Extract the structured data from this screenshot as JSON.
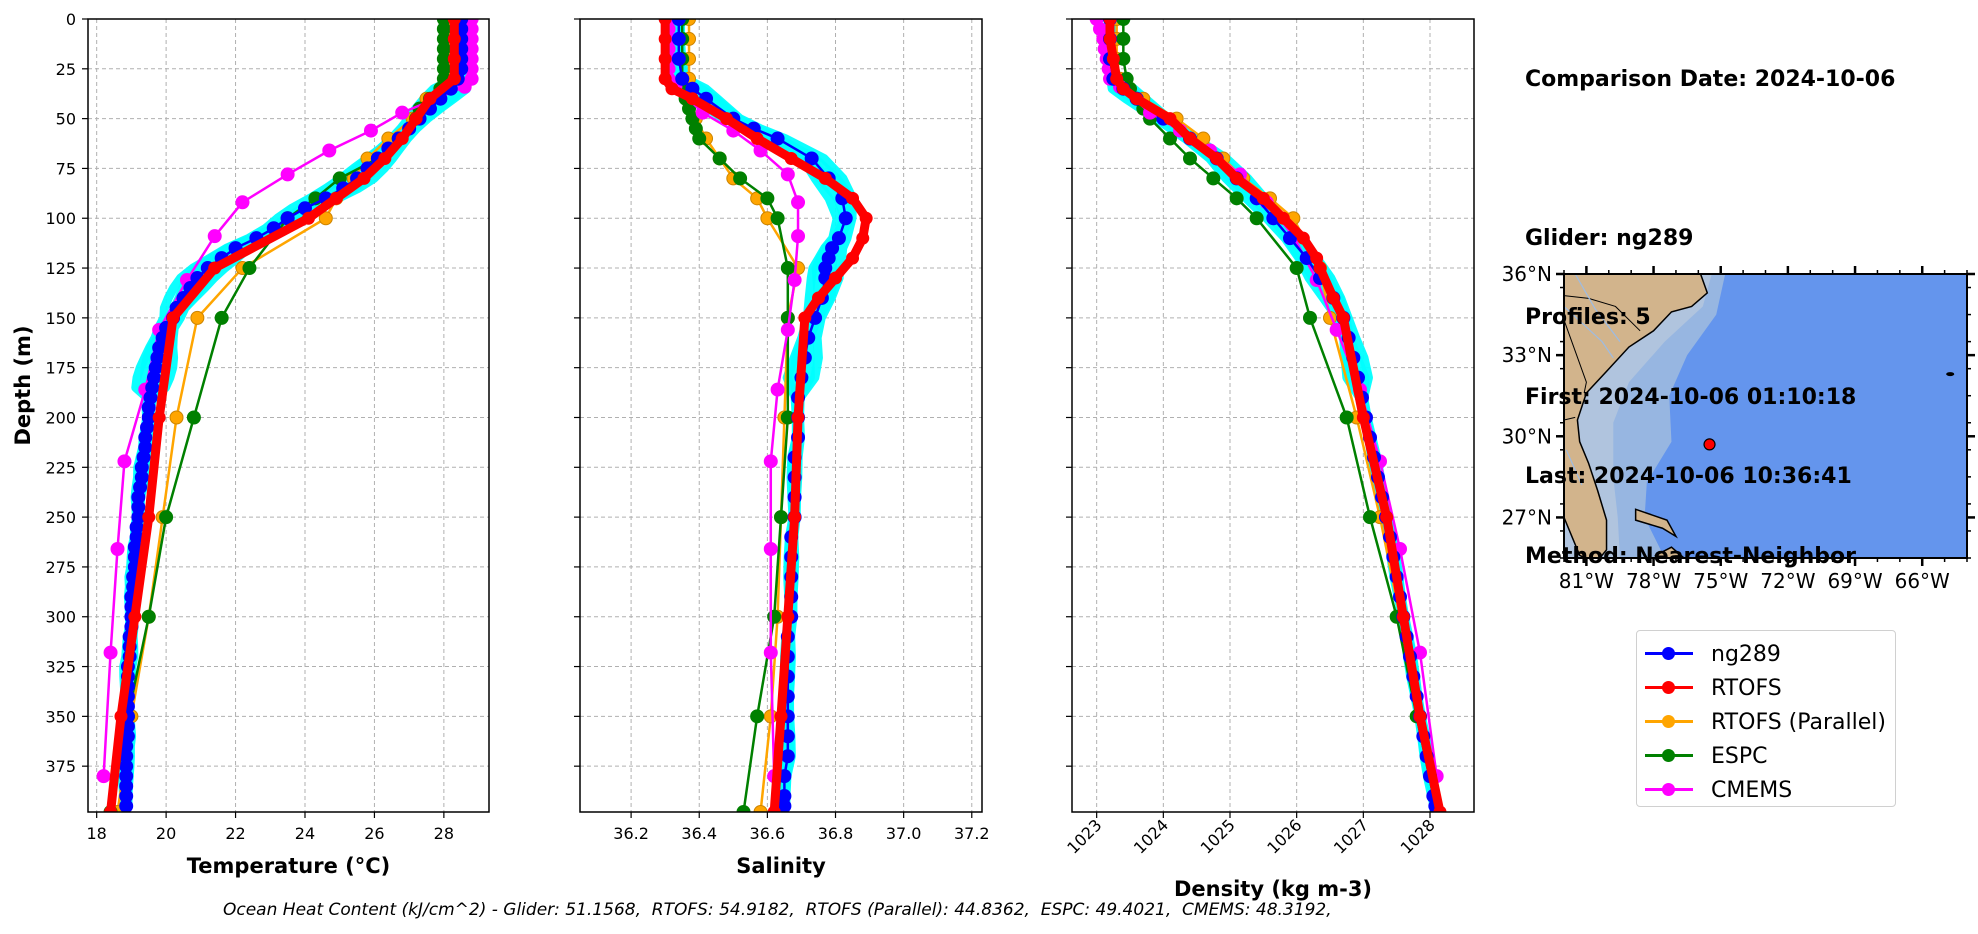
{
  "info": {
    "comparison_date": "Comparison Date: 2024-10-06",
    "glider": "Glider: ng289",
    "profiles": "Profiles: 5",
    "first": "First: 2024-10-06 01:10:18",
    "last": "Last: 2024-10-06 10:36:41",
    "method": "Method: Nearest-Neighbor"
  },
  "footer": "Ocean Heat Content (kJ/cm^2) - Glider: 51.1568,  RTOFS: 54.9182,  RTOFS (Parallel): 44.8362,  ESPC: 49.4021,  CMEMS: 48.3192,",
  "legend": [
    {
      "label": "ng289",
      "color": "#0000ff"
    },
    {
      "label": "RTOFS",
      "color": "#ff0000"
    },
    {
      "label": "RTOFS (Parallel)",
      "color": "#ffa500"
    },
    {
      "label": "ESPC",
      "color": "#008000"
    },
    {
      "label": "CMEMS",
      "color": "#ff00ff"
    }
  ],
  "colors": {
    "glider_raw": "#00ffff",
    "ng289": "#0000ff",
    "RTOFS": "#ff0000",
    "RTOFS (Parallel)": "#ffa500",
    "ESPC": "#008000",
    "CMEMS": "#ff00ff",
    "land": "#d2b48c",
    "shelf": "#b0c4de",
    "slope": "#97b6e1",
    "ocean": "#6495ed",
    "glider_marker": "#ff0000"
  },
  "map": {
    "lat_ticks": [
      "36°N",
      "33°N",
      "30°N",
      "27°N"
    ],
    "lon_ticks": [
      "81°W",
      "78°W",
      "75°W",
      "72°W",
      "69°W",
      "66°W"
    ],
    "extent": {
      "lon": [
        -82,
        -64
      ],
      "lat": [
        25.5,
        36
      ]
    },
    "glider_position": {
      "lon": -75.5,
      "lat": 29.7
    }
  },
  "chart_data": [
    {
      "type": "line",
      "title": "",
      "xlabel": "Temperature (°C)",
      "ylabel": "Depth (m)",
      "xlim": [
        17.75,
        29.3
      ],
      "ylim": [
        398,
        0
      ],
      "xticks": [
        18,
        20,
        22,
        24,
        26,
        28
      ],
      "yticks": [
        0,
        25,
        50,
        75,
        100,
        125,
        150,
        175,
        200,
        225,
        250,
        275,
        300,
        325,
        350,
        375
      ],
      "grid": true,
      "series": [
        {
          "name": "ng289",
          "depth": [
            0,
            5,
            10,
            15,
            20,
            25,
            30,
            35,
            40,
            45,
            50,
            55,
            60,
            65,
            70,
            75,
            80,
            85,
            90,
            95,
            100,
            105,
            110,
            115,
            120,
            125,
            130,
            135,
            140,
            145,
            150,
            155,
            160,
            165,
            170,
            175,
            180,
            185,
            190,
            195,
            200,
            205,
            210,
            215,
            220,
            225,
            230,
            235,
            240,
            245,
            250,
            255,
            260,
            265,
            270,
            275,
            280,
            285,
            290,
            295,
            300,
            305,
            310,
            315,
            320,
            325,
            330,
            335,
            340,
            345,
            350,
            355,
            360,
            365,
            370,
            375,
            380,
            385,
            390,
            395
          ],
          "values": [
            28.5,
            28.5,
            28.5,
            28.5,
            28.5,
            28.5,
            28.4,
            28.2,
            27.9,
            27.6,
            27.3,
            27.0,
            26.7,
            26.4,
            26.1,
            25.8,
            25.5,
            25.1,
            24.6,
            24.0,
            23.5,
            23.1,
            22.6,
            22.0,
            21.6,
            21.2,
            20.9,
            20.7,
            20.5,
            20.3,
            20.2,
            20.0,
            19.9,
            19.8,
            19.75,
            19.7,
            19.65,
            19.6,
            19.55,
            19.5,
            19.5,
            19.45,
            19.4,
            19.4,
            19.35,
            19.3,
            19.3,
            19.25,
            19.2,
            19.2,
            19.2,
            19.15,
            19.15,
            19.1,
            19.1,
            19.1,
            19.05,
            19.05,
            19.0,
            19.0,
            19.0,
            19.0,
            18.95,
            18.95,
            18.95,
            18.9,
            18.9,
            18.9,
            18.9,
            18.9,
            18.9,
            18.9,
            18.9,
            18.85,
            18.85,
            18.85,
            18.85,
            18.85,
            18.85,
            18.85
          ]
        },
        {
          "name": "RTOFS",
          "depth": [
            0,
            10,
            20,
            30,
            40,
            50,
            60,
            70,
            80,
            90,
            100,
            125,
            150,
            200,
            250,
            300,
            350,
            398
          ],
          "values": [
            28.3,
            28.3,
            28.3,
            28.3,
            27.6,
            27.2,
            26.8,
            26.3,
            25.7,
            24.9,
            24.1,
            21.4,
            20.2,
            19.8,
            19.5,
            19.1,
            18.7,
            18.4
          ]
        },
        {
          "name": "RTOFS (Parallel)",
          "depth": [
            0,
            10,
            20,
            30,
            35,
            40,
            45,
            50,
            60,
            70,
            80,
            90,
            100,
            125,
            150,
            200,
            250,
            300,
            350,
            398
          ],
          "values": [
            28.1,
            28.1,
            28.1,
            28.1,
            27.9,
            27.5,
            27.3,
            27.1,
            26.4,
            25.8,
            25.4,
            24.9,
            24.6,
            22.2,
            20.9,
            20.3,
            19.9,
            19.5,
            19.0,
            18.6
          ]
        },
        {
          "name": "ESPC",
          "depth": [
            0,
            5,
            10,
            15,
            20,
            25,
            30,
            35,
            40,
            45,
            50,
            60,
            70,
            80,
            90,
            100,
            125,
            150,
            200,
            250,
            300,
            350,
            398
          ],
          "values": [
            28.0,
            28.0,
            28.0,
            28.0,
            28.0,
            28.0,
            28.0,
            27.9,
            27.6,
            27.3,
            27.2,
            26.7,
            26.1,
            25.0,
            24.3,
            23.5,
            22.4,
            21.6,
            20.8,
            20.0,
            19.5,
            18.9,
            18.4
          ]
        },
        {
          "name": "CMEMS",
          "depth": [
            0,
            5,
            10,
            15,
            20,
            25,
            30,
            34,
            47,
            56,
            66,
            78,
            92,
            109,
            131,
            156,
            186,
            222,
            266,
            318,
            380
          ],
          "values": [
            28.8,
            28.8,
            28.8,
            28.8,
            28.8,
            28.8,
            28.8,
            28.6,
            26.8,
            25.9,
            24.7,
            23.5,
            22.2,
            21.4,
            20.6,
            19.8,
            19.4,
            18.8,
            18.6,
            18.4,
            18.2
          ]
        }
      ]
    },
    {
      "type": "line",
      "title": "",
      "xlabel": "Salinity",
      "ylabel": "",
      "xlim": [
        36.05,
        37.23
      ],
      "ylim": [
        398,
        0
      ],
      "xticks": [
        36.2,
        36.4,
        36.6,
        36.8,
        37.0,
        37.2
      ],
      "yticks": [
        0,
        25,
        50,
        75,
        100,
        125,
        150,
        175,
        200,
        225,
        250,
        275,
        300,
        325,
        350,
        375
      ],
      "grid": true,
      "series": [
        {
          "name": "ng289",
          "depth": [
            0,
            10,
            20,
            30,
            35,
            40,
            50,
            55,
            60,
            70,
            80,
            90,
            100,
            110,
            115,
            120,
            125,
            130,
            140,
            150,
            160,
            170,
            180,
            190,
            200,
            210,
            220,
            230,
            240,
            250,
            260,
            270,
            280,
            290,
            300,
            310,
            320,
            330,
            340,
            350,
            360,
            370,
            380,
            390,
            395
          ],
          "values": [
            36.34,
            36.34,
            36.34,
            36.35,
            36.38,
            36.42,
            36.5,
            36.56,
            36.63,
            36.73,
            36.78,
            36.82,
            36.83,
            36.81,
            36.79,
            36.78,
            36.77,
            36.77,
            36.76,
            36.74,
            36.72,
            36.71,
            36.7,
            36.69,
            36.69,
            36.69,
            36.68,
            36.68,
            36.68,
            36.68,
            36.67,
            36.67,
            36.67,
            36.67,
            36.67,
            36.66,
            36.66,
            36.66,
            36.66,
            36.66,
            36.66,
            36.66,
            36.65,
            36.65,
            36.65
          ]
        },
        {
          "name": "RTOFS",
          "depth": [
            0,
            10,
            20,
            30,
            35,
            40,
            50,
            60,
            70,
            80,
            90,
            100,
            110,
            120,
            130,
            140,
            150,
            200,
            250,
            300,
            350,
            398
          ],
          "values": [
            36.3,
            36.3,
            36.3,
            36.3,
            36.32,
            36.38,
            36.48,
            36.57,
            36.67,
            36.77,
            36.85,
            36.89,
            36.88,
            36.85,
            36.8,
            36.75,
            36.71,
            36.69,
            36.68,
            36.66,
            36.64,
            36.62
          ]
        },
        {
          "name": "RTOFS (Parallel)",
          "depth": [
            0,
            10,
            20,
            30,
            35,
            40,
            50,
            60,
            70,
            80,
            90,
            100,
            125,
            150,
            200,
            250,
            300,
            350,
            398
          ],
          "values": [
            36.37,
            36.37,
            36.37,
            36.37,
            36.36,
            36.37,
            36.39,
            36.42,
            36.46,
            36.5,
            36.57,
            36.6,
            36.69,
            36.66,
            36.65,
            36.64,
            36.63,
            36.61,
            36.58
          ]
        },
        {
          "name": "ESPC",
          "depth": [
            0,
            10,
            20,
            30,
            35,
            40,
            45,
            50,
            55,
            60,
            70,
            80,
            90,
            100,
            125,
            150,
            200,
            250,
            300,
            350,
            398
          ],
          "values": [
            36.35,
            36.35,
            36.35,
            36.35,
            36.35,
            36.36,
            36.37,
            36.38,
            36.39,
            36.4,
            36.46,
            36.52,
            36.6,
            36.63,
            36.66,
            36.66,
            36.66,
            36.64,
            36.62,
            36.57,
            36.53
          ]
        },
        {
          "name": "CMEMS",
          "depth": [
            0,
            5,
            10,
            15,
            20,
            25,
            30,
            34,
            47,
            56,
            66,
            78,
            92,
            109,
            131,
            156,
            186,
            222,
            266,
            318,
            380
          ],
          "values": [
            36.31,
            36.31,
            36.31,
            36.31,
            36.31,
            36.31,
            36.31,
            36.33,
            36.41,
            36.5,
            36.58,
            36.66,
            36.69,
            36.69,
            36.68,
            36.66,
            36.63,
            36.61,
            36.61,
            36.61,
            36.62
          ]
        }
      ]
    },
    {
      "type": "line",
      "title": "",
      "xlabel": "Density (kg m-3)",
      "ylabel": "",
      "xlim": [
        1022.63,
        1028.66
      ],
      "ylim": [
        398,
        0
      ],
      "xticks": [
        1023,
        1024,
        1025,
        1026,
        1027,
        1028
      ],
      "yticks": [
        0,
        25,
        50,
        75,
        100,
        125,
        150,
        175,
        200,
        225,
        250,
        275,
        300,
        325,
        350,
        375
      ],
      "grid": true,
      "series": [
        {
          "name": "ng289",
          "depth": [
            0,
            10,
            20,
            30,
            35,
            40,
            50,
            60,
            70,
            80,
            90,
            100,
            110,
            120,
            130,
            140,
            150,
            160,
            170,
            180,
            190,
            200,
            210,
            220,
            230,
            240,
            250,
            260,
            270,
            280,
            290,
            300,
            310,
            320,
            330,
            340,
            350,
            360,
            370,
            380,
            390,
            395
          ],
          "values": [
            1023.2,
            1023.2,
            1023.2,
            1023.25,
            1023.4,
            1023.6,
            1024.0,
            1024.4,
            1024.8,
            1025.1,
            1025.4,
            1025.65,
            1025.9,
            1026.15,
            1026.35,
            1026.55,
            1026.7,
            1026.78,
            1026.85,
            1026.92,
            1026.98,
            1027.04,
            1027.1,
            1027.16,
            1027.22,
            1027.28,
            1027.34,
            1027.4,
            1027.45,
            1027.5,
            1027.55,
            1027.6,
            1027.65,
            1027.7,
            1027.75,
            1027.8,
            1027.85,
            1027.9,
            1027.95,
            1028.0,
            1028.05,
            1028.08
          ]
        },
        {
          "name": "RTOFS",
          "depth": [
            0,
            10,
            20,
            30,
            35,
            40,
            50,
            60,
            70,
            80,
            90,
            100,
            110,
            120,
            125,
            140,
            150,
            200,
            250,
            300,
            350,
            398
          ],
          "values": [
            1023.2,
            1023.2,
            1023.25,
            1023.3,
            1023.4,
            1023.6,
            1024.1,
            1024.4,
            1024.8,
            1025.1,
            1025.5,
            1025.8,
            1026.1,
            1026.3,
            1026.35,
            1026.55,
            1026.7,
            1027.0,
            1027.35,
            1027.6,
            1027.85,
            1028.15
          ]
        },
        {
          "name": "RTOFS (Parallel)",
          "depth": [
            0,
            10,
            20,
            30,
            35,
            40,
            50,
            60,
            70,
            80,
            90,
            100,
            125,
            150,
            200,
            250,
            300,
            350,
            398
          ],
          "values": [
            1023.3,
            1023.3,
            1023.3,
            1023.35,
            1023.45,
            1023.7,
            1024.2,
            1024.6,
            1024.9,
            1025.2,
            1025.6,
            1025.95,
            1026.35,
            1026.5,
            1026.9,
            1027.25,
            1027.55,
            1027.85,
            1028.1
          ]
        },
        {
          "name": "ESPC",
          "depth": [
            0,
            10,
            20,
            30,
            35,
            40,
            45,
            50,
            60,
            70,
            80,
            90,
            100,
            125,
            150,
            200,
            250,
            300,
            350,
            398
          ],
          "values": [
            1023.4,
            1023.4,
            1023.4,
            1023.45,
            1023.5,
            1023.6,
            1023.7,
            1023.8,
            1024.1,
            1024.4,
            1024.75,
            1025.1,
            1025.4,
            1026.0,
            1026.2,
            1026.75,
            1027.1,
            1027.5,
            1027.8,
            1028.1
          ]
        },
        {
          "name": "CMEMS",
          "depth": [
            0,
            5,
            10,
            15,
            20,
            25,
            30,
            34,
            47,
            56,
            66,
            78,
            92,
            109,
            131,
            156,
            186,
            222,
            266,
            318,
            380
          ],
          "values": [
            1023.0,
            1023.05,
            1023.1,
            1023.12,
            1023.15,
            1023.18,
            1023.2,
            1023.35,
            1023.8,
            1024.25,
            1024.7,
            1025.15,
            1025.55,
            1025.95,
            1026.3,
            1026.6,
            1026.95,
            1027.25,
            1027.55,
            1027.85,
            1028.1
          ]
        }
      ]
    }
  ]
}
